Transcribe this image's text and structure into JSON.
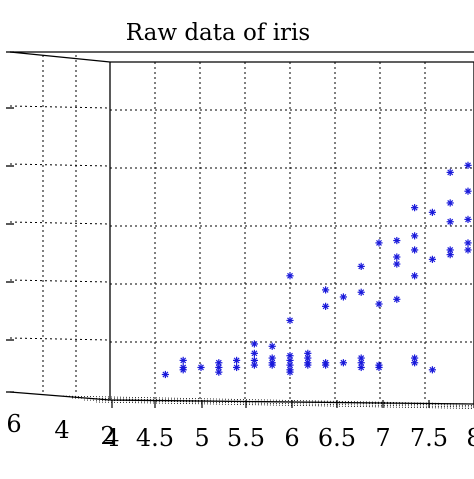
{
  "chart_data": {
    "type": "scatter",
    "title": "Raw data of iris",
    "marker": "*",
    "color": "#1a1adb",
    "x_ticks": [
      "4",
      "4.5",
      "5",
      "5.5",
      "6",
      "6.5",
      "7",
      "7.5",
      "8"
    ],
    "depth_ticks": [
      "6",
      "4",
      "2"
    ],
    "grid": true,
    "series": [
      {
        "points": [
          [
            4.3,
            1.0
          ],
          [
            4.4,
            1.2
          ],
          [
            4.4,
            1.3
          ],
          [
            4.5,
            1.3
          ],
          [
            4.6,
            1.3
          ],
          [
            4.6,
            1.5
          ],
          [
            4.7,
            1.3
          ],
          [
            4.7,
            1.6
          ],
          [
            4.8,
            1.4
          ],
          [
            4.8,
            1.6
          ],
          [
            4.8,
            1.9
          ],
          [
            4.9,
            1.4
          ],
          [
            4.9,
            1.5
          ],
          [
            4.9,
            1.7
          ],
          [
            5.0,
            1.2
          ],
          [
            5.0,
            1.4
          ],
          [
            5.0,
            1.6
          ],
          [
            5.0,
            1.8
          ],
          [
            5.1,
            1.4
          ],
          [
            5.1,
            1.5
          ],
          [
            5.1,
            1.7
          ],
          [
            5.1,
            1.9
          ],
          [
            5.2,
            1.4
          ],
          [
            5.2,
            1.5
          ],
          [
            5.3,
            1.5
          ],
          [
            5.4,
            1.3
          ],
          [
            5.4,
            1.5
          ],
          [
            5.4,
            1.7
          ],
          [
            5.5,
            1.3
          ],
          [
            5.5,
            1.4
          ],
          [
            5.7,
            1.5
          ],
          [
            5.7,
            1.7
          ],
          [
            5.8,
            1.2
          ],
          [
            4.4,
            1.6
          ],
          [
            4.6,
            1.1
          ],
          [
            5.0,
            1.1
          ],
          [
            4.9,
            2.2
          ],
          [
            4.8,
            2.3
          ],
          [
            5.0,
            3.3
          ],
          [
            5.2,
            3.9
          ],
          [
            5.4,
            4.5
          ],
          [
            5.5,
            4.0
          ],
          [
            5.6,
            4.2
          ],
          [
            5.0,
            5.2
          ],
          [
            5.7,
            5.2
          ],
          [
            5.4,
            5.6
          ],
          [
            5.6,
            5.7
          ],
          [
            5.8,
            5.9
          ],
          [
            5.9,
            6.3
          ],
          [
            5.6,
            6.7
          ],
          [
            5.7,
            6.3
          ],
          [
            5.9,
            6.1
          ],
          [
            6.0,
            6.3
          ],
          [
            6.1,
            6.0
          ],
          [
            6.0,
            6.6
          ],
          [
            6.2,
            6.8
          ],
          [
            6.3,
            7.1
          ],
          [
            6.1,
            7.5
          ],
          [
            6.4,
            7.8
          ],
          [
            6.6,
            7.9
          ],
          [
            6.7,
            8.2
          ],
          [
            6.5,
            8.3
          ],
          [
            6.4,
            8.7
          ],
          [
            6.7,
            9.0
          ],
          [
            6.9,
            8.9
          ],
          [
            6.8,
            9.2
          ],
          [
            7.0,
            9.5
          ],
          [
            6.3,
            5.7
          ],
          [
            6.5,
            5.9
          ],
          [
            6.7,
            6.3
          ],
          [
            6.8,
            6.8
          ],
          [
            6.9,
            7.2
          ],
          [
            6.6,
            7.3
          ],
          [
            6.2,
            7.3
          ],
          [
            6.0,
            7.6
          ],
          [
            5.9,
            7.5
          ],
          [
            5.8,
            7.9
          ],
          [
            5.7,
            8.1
          ],
          [
            6.1,
            8.4
          ],
          [
            6.0,
            8.8
          ],
          [
            6.2,
            9.2
          ],
          [
            6.4,
            9.6
          ],
          [
            6.6,
            9.9
          ],
          [
            6.7,
            10.0
          ],
          [
            6.8,
            10.4
          ],
          [
            6.9,
            10.8
          ],
          [
            6.5,
            10.7
          ],
          [
            6.3,
            10.2
          ],
          [
            6.1,
            9.9
          ],
          [
            5.9,
            9.6
          ],
          [
            6.3,
            9.4
          ],
          [
            6.0,
            9.9
          ],
          [
            7.2,
            11.4
          ],
          [
            7.3,
            11.1
          ],
          [
            7.4,
            10.8
          ],
          [
            7.6,
            12.0
          ],
          [
            7.7,
            11.8
          ],
          [
            7.8,
            12.2
          ],
          [
            7.9,
            12.6
          ],
          [
            7.5,
            12.3
          ],
          [
            7.4,
            12.4
          ],
          [
            7.7,
            12.7
          ],
          [
            8.0,
            13.0
          ],
          [
            8.1,
            13.4
          ],
          [
            8.2,
            13.7
          ],
          [
            8.4,
            14.0
          ],
          [
            8.3,
            14.2
          ],
          [
            8.4,
            14.5
          ],
          [
            8.2,
            13.2
          ],
          [
            8.0,
            12.7
          ],
          [
            5.2,
            4.6
          ],
          [
            5.3,
            4.3
          ],
          [
            5.6,
            6.0
          ],
          [
            5.7,
            6.9
          ],
          [
            5.5,
            6.6
          ],
          [
            6.4,
            8.0
          ],
          [
            6.6,
            8.6
          ],
          [
            6.8,
            8.0
          ],
          [
            6.9,
            9.8
          ],
          [
            7.0,
            10.3
          ],
          [
            7.1,
            9.9
          ],
          [
            7.0,
            8.4
          ],
          [
            6.9,
            7.8
          ],
          [
            6.4,
            9.1
          ],
          [
            6.2,
            8.1
          ],
          [
            5.9,
            8.3
          ]
        ]
      }
    ]
  }
}
